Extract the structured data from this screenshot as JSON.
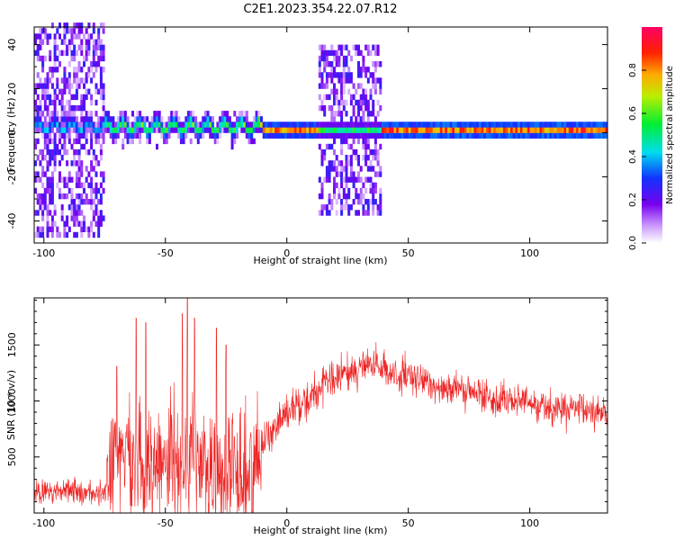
{
  "page": {
    "title": "C2E1.2023.354.22.07.R12"
  },
  "chart_data": [
    {
      "type": "heatmap",
      "xlabel": "Height of straight line (km)",
      "ylabel": "Frequency (Hz)",
      "xlim": [
        -104,
        132
      ],
      "ylim": [
        -50,
        48
      ],
      "xticks": [
        -100,
        -50,
        0,
        50,
        100
      ],
      "yticks": [
        -40,
        -20,
        0,
        20,
        40
      ],
      "colorbar": {
        "label": "Normalized spectral amplitude",
        "ticks": [
          0.0,
          0.2,
          0.4,
          0.6,
          0.8
        ],
        "tick_labels": [
          "0.0",
          "0.2",
          "0.4",
          "0.6",
          "0.8"
        ],
        "range": [
          0,
          1
        ]
      },
      "regions": [
        {
          "x": [
            -104,
            -75
          ],
          "freq_spread": 48,
          "noise_density": "high",
          "peak_amplitude": 0.5
        },
        {
          "x": [
            -75,
            -12
          ],
          "freq_spread": 8,
          "noise_density": "sparse",
          "peak_amplitude": 0.7
        },
        {
          "x": [
            -12,
            13
          ],
          "freq_spread": 4,
          "noise_density": "none",
          "peak_amplitude": 0.9
        },
        {
          "x": [
            13,
            39
          ],
          "freq_spread": 38,
          "noise_density": "high",
          "peak_amplitude": 0.6
        },
        {
          "x": [
            39,
            132
          ],
          "freq_spread": 2,
          "noise_density": "none",
          "peak_amplitude": 0.95
        }
      ],
      "grid": false
    },
    {
      "type": "line",
      "xlabel": "Height of straight line (km)",
      "ylabel": "SNR (10 * v/v)",
      "xlim": [
        -104,
        132
      ],
      "ylim": [
        0,
        1920
      ],
      "xticks": [
        -100,
        -50,
        0,
        50,
        100
      ],
      "yticks": [
        500,
        1000,
        1500
      ],
      "series": [
        {
          "color": "#ee2222",
          "trend": {
            "x": [
              -104,
              -90,
              -75,
              -72,
              -65,
              -55,
              -45,
              -35,
              -25,
              -15,
              -10,
              0,
              10,
              20,
              30,
              35,
              45,
              60,
              80,
              100,
              115,
              132
            ],
            "y": [
              180,
              200,
              170,
              450,
              550,
              450,
              500,
              430,
              380,
              330,
              650,
              900,
              1050,
              1200,
              1300,
              1320,
              1230,
              1150,
              1050,
              980,
              920,
              900
            ]
          },
          "noise": {
            "x": [
              -104,
              -75,
              -72,
              -12,
              -10,
              20,
              132
            ],
            "amplitude": [
              120,
              120,
              650,
              650,
              220,
              180,
              160
            ]
          },
          "peaks": [
            {
              "x": -70,
              "y": 1310
            },
            {
              "x": -62,
              "y": 1740
            },
            {
              "x": -58,
              "y": 1700
            },
            {
              "x": -43,
              "y": 1780
            },
            {
              "x": -41,
              "y": 1920
            },
            {
              "x": -38,
              "y": 1740
            },
            {
              "x": -29,
              "y": 1650
            },
            {
              "x": -25,
              "y": 1500
            }
          ]
        }
      ],
      "grid": false
    }
  ]
}
